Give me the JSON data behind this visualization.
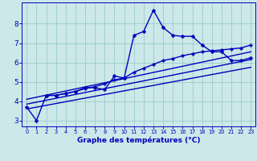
{
  "xlabel": "Graphe des températures (°C)",
  "bg_color": "#cce8e8",
  "grid_color": "#99cccc",
  "line_color": "#0000bb",
  "xlim": [
    -0.5,
    23.5
  ],
  "ylim": [
    2.7,
    9.1
  ],
  "xticks": [
    0,
    1,
    2,
    3,
    4,
    5,
    6,
    7,
    8,
    9,
    10,
    11,
    12,
    13,
    14,
    15,
    16,
    17,
    18,
    19,
    20,
    21,
    22,
    23
  ],
  "yticks": [
    3,
    4,
    5,
    6,
    7,
    8
  ],
  "series": [
    {
      "x": [
        0,
        1,
        2,
        3,
        4,
        5,
        6,
        7,
        8,
        9,
        10,
        11,
        12,
        13,
        14,
        15,
        16,
        17,
        18,
        19,
        20,
        21,
        22,
        23
      ],
      "y": [
        3.7,
        3.0,
        4.3,
        4.3,
        4.4,
        4.5,
        4.7,
        4.7,
        4.6,
        5.3,
        5.2,
        7.4,
        7.6,
        8.7,
        7.8,
        7.4,
        7.35,
        7.35,
        6.9,
        6.55,
        6.55,
        6.1,
        6.1,
        6.25
      ],
      "marker": "P",
      "markersize": 2.8,
      "linewidth": 1.0
    },
    {
      "x": [
        2,
        3,
        4,
        5,
        6,
        7,
        8,
        9,
        10,
        11,
        12,
        13,
        14,
        15,
        16,
        17,
        18,
        19,
        20,
        21,
        22,
        23
      ],
      "y": [
        4.3,
        4.3,
        4.4,
        4.5,
        4.65,
        4.75,
        4.9,
        5.1,
        5.2,
        5.5,
        5.7,
        5.9,
        6.1,
        6.2,
        6.35,
        6.45,
        6.55,
        6.6,
        6.65,
        6.7,
        6.75,
        6.9
      ],
      "marker": "P",
      "markersize": 2.5,
      "linewidth": 1.0
    },
    {
      "x": [
        0,
        23
      ],
      "y": [
        4.1,
        6.55
      ],
      "marker": null,
      "markersize": 0,
      "linewidth": 1.0
    },
    {
      "x": [
        0,
        23
      ],
      "y": [
        3.85,
        6.15
      ],
      "marker": null,
      "markersize": 0,
      "linewidth": 1.0
    },
    {
      "x": [
        0,
        23
      ],
      "y": [
        3.6,
        5.75
      ],
      "marker": null,
      "markersize": 0,
      "linewidth": 1.0
    }
  ]
}
